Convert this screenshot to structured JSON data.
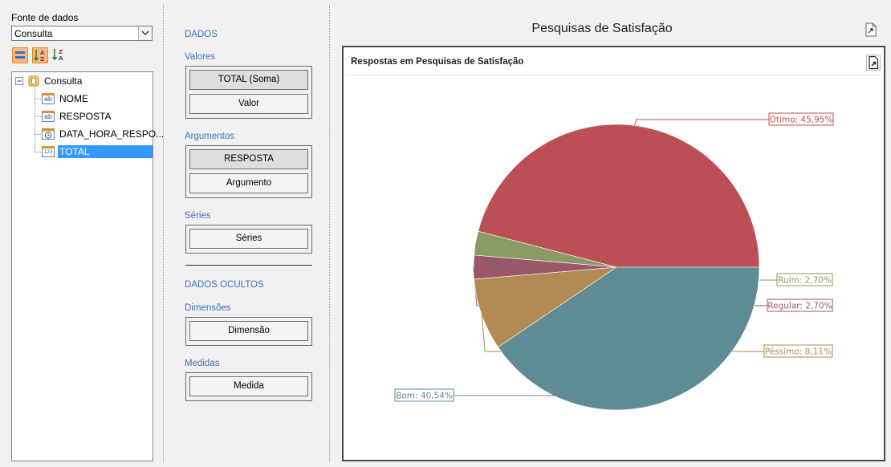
{
  "data_source": {
    "label": "Fonte de dados",
    "selected": "Consulta",
    "tree": {
      "root": "Consulta",
      "fields": [
        {
          "name": "NOME",
          "icon": "ab"
        },
        {
          "name": "RESPOSTA",
          "icon": "ab"
        },
        {
          "name": "DATA_HORA_RESPO...",
          "icon": "clock"
        },
        {
          "name": "TOTAL",
          "icon": "123",
          "selected": true
        }
      ]
    }
  },
  "bindings": {
    "dados": "DADOS",
    "valores": {
      "title": "Valores",
      "items": [
        "TOTAL (Soma)",
        "Valor"
      ]
    },
    "argumentos": {
      "title": "Argumentos",
      "items": [
        "RESPOSTA",
        "Argumento"
      ]
    },
    "series": {
      "title": "Séries",
      "items": [
        "Séries"
      ]
    },
    "dados_ocultos": "DADOS OCULTOS",
    "dimensoes": {
      "title": "Dimensões",
      "items": [
        "Dimensão"
      ]
    },
    "medidas": {
      "title": "Medidas",
      "items": [
        "Medida"
      ]
    }
  },
  "dashboard": {
    "title": "Pesquisas de Satisfação",
    "chart_title": "Respostas em Pesquisas de Satisfação"
  },
  "chart_data": {
    "type": "pie",
    "title": "Respostas em Pesquisas de Satisfação",
    "slices": [
      {
        "label": "Ótimo",
        "value": 45.95,
        "text": "Ótimo: 45,95%",
        "color": "#bc4f55"
      },
      {
        "label": "Ruim",
        "value": 2.7,
        "text": "Ruim: 2,70%",
        "color": "#8a9a65"
      },
      {
        "label": "Regular",
        "value": 2.7,
        "text": "Regular: 2,70%",
        "color": "#99596a"
      },
      {
        "label": "Péssimo",
        "value": 8.11,
        "text": "Péssimo: 8,11%",
        "color": "#b08a52"
      },
      {
        "label": "Bom",
        "value": 40.54,
        "text": "Bom: 40,54%",
        "color": "#5f8b94"
      }
    ]
  }
}
